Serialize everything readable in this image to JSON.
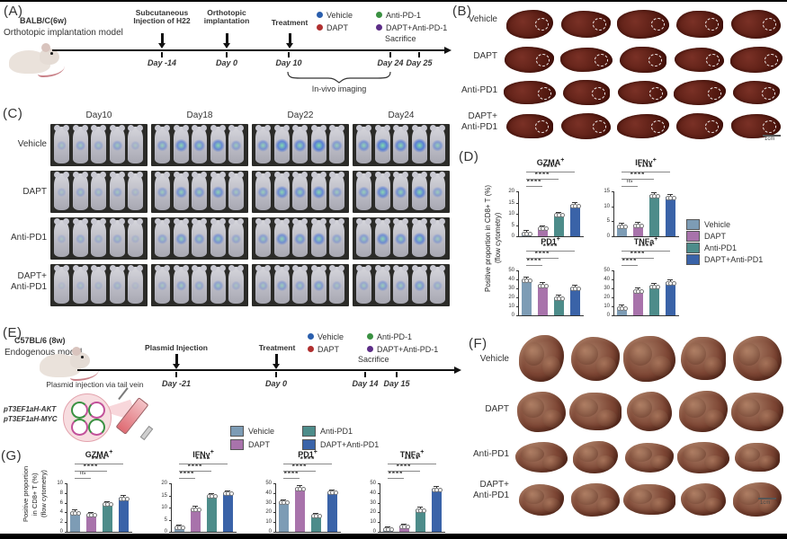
{
  "figure": {
    "panelA": {
      "label": "(A)",
      "strain": "BALB/C(6w)",
      "model": "Orthotopic implantation model",
      "events": [
        "Subcutaneous Injection of H22",
        "Orthotopic implantation",
        "Treatment"
      ],
      "days": [
        "Day -14",
        "Day 0",
        "Day 10",
        "Day 24",
        "Day 25"
      ],
      "sacrifice": "Sacrifice",
      "imaging_span": "In-vivo imaging",
      "legend": [
        {
          "label": "Vehicle",
          "color": "#2b5fad"
        },
        {
          "label": "DAPT",
          "color": "#b03030"
        },
        {
          "label": "Anti-PD-1",
          "color": "#3a9142"
        },
        {
          "label": "DAPT+Anti-PD-1",
          "color": "#5c2d87"
        }
      ]
    },
    "panelB": {
      "label": "(B)",
      "rows": [
        "Vehicle",
        "DAPT",
        "Anti-PD1",
        "DAPT+\nAnti-PD1"
      ],
      "scale_bar": "1cm"
    },
    "panelC": {
      "label": "(C)",
      "columns": [
        "Day10",
        "Day18",
        "Day22",
        "Day24"
      ],
      "rows": [
        "Vehicle",
        "DAPT",
        "Anti-PD1",
        "DAPT+\nAnti-PD1"
      ]
    },
    "panelD": {
      "label": "(D)",
      "ylabel_lines": [
        "Positive proportion in CD8+ T (%)",
        "(flow cytometry)"
      ]
    },
    "panelE": {
      "label": "(E)",
      "strain": "C57BL/6 (8w)",
      "model": "Endogenous model",
      "events": [
        "Plasmid Injection",
        "Treatment"
      ],
      "days": [
        "Day -21",
        "Day 0",
        "Day 14",
        "Day 15"
      ],
      "sacrifice": "Sacrifice",
      "tail_note": "Plasmid injection via tail vein",
      "plasmids": [
        "pT3EF1aH-AKT",
        "pT3EF1aH-MYC"
      ],
      "legend": [
        {
          "label": "Vehicle",
          "color": "#2b5fad"
        },
        {
          "label": "DAPT",
          "color": "#b03030"
        },
        {
          "label": "Anti-PD-1",
          "color": "#3a9142"
        },
        {
          "label": "DAPT+Anti-PD-1",
          "color": "#5c2d87"
        }
      ]
    },
    "panelF": {
      "label": "(F)",
      "rows": [
        "Vehicle",
        "DAPT",
        "Anti-PD1",
        "DAPT+\nAnti-PD1"
      ],
      "scale_bar": "1cm"
    },
    "panelG": {
      "label": "(G)",
      "ylabel_lines": [
        "Positive proportion",
        "in CD8+ T (%)",
        "(flow cytometry)"
      ]
    }
  },
  "bar_legend": {
    "items": [
      "Vehicle",
      "DAPT",
      "Anti-PD1",
      "DAPT+Anti-PD1"
    ],
    "colors": {
      "vehicle": "#7d9cb5",
      "dapt": "#a873ab",
      "antipd1": "#4d8c8a",
      "combo": "#3a63a8"
    }
  },
  "chart_data": [
    {
      "id": "d-gzma",
      "panel": "D",
      "type": "bar",
      "title": "GZMA",
      "title_sup": "+",
      "categories": [
        "Vehicle",
        "DAPT",
        "Anti-PD1",
        "DAPT+Anti-PD1"
      ],
      "values": [
        1.5,
        3.7,
        9.7,
        14
      ],
      "ylim": [
        0,
        20
      ],
      "yticks": [
        0,
        5,
        10,
        15,
        20
      ],
      "sig_vs_vehicle": [
        "****",
        "****",
        "****"
      ]
    },
    {
      "id": "d-ifny",
      "panel": "D",
      "type": "bar",
      "title": "IFNγ",
      "title_sup": "+",
      "categories": [
        "Vehicle",
        "DAPT",
        "Anti-PD1",
        "DAPT+Anti-PD1"
      ],
      "values": [
        3.5,
        3.9,
        13.8,
        13.2
      ],
      "ylim": [
        0,
        15
      ],
      "yticks": [
        0,
        5,
        10,
        15
      ],
      "sig_vs_vehicle": [
        "ns",
        "****",
        "****"
      ]
    },
    {
      "id": "d-pd1",
      "panel": "D",
      "type": "bar",
      "title": "PD1",
      "title_sup": "+",
      "categories": [
        "Vehicle",
        "DAPT",
        "Anti-PD1",
        "DAPT+Anti-PD1"
      ],
      "values": [
        40,
        34,
        20,
        31
      ],
      "ylim": [
        0,
        50
      ],
      "yticks": [
        0,
        10,
        20,
        30,
        40,
        50
      ],
      "sig_vs_vehicle": [
        "****",
        "****",
        "****"
      ]
    },
    {
      "id": "d-tnfa",
      "panel": "D",
      "type": "bar",
      "title": "TNFa",
      "title_sup": "+",
      "categories": [
        "Vehicle",
        "DAPT",
        "Anti-PD1",
        "DAPT+Anti-PD1"
      ],
      "values": [
        9,
        28,
        33,
        37
      ],
      "ylim": [
        0,
        50
      ],
      "yticks": [
        0,
        10,
        20,
        30,
        40,
        50
      ],
      "sig_vs_vehicle": [
        "****",
        "****",
        "****"
      ]
    },
    {
      "id": "g-gzma",
      "panel": "G",
      "type": "bar",
      "title": "GZMA",
      "title_sup": "+",
      "categories": [
        "Vehicle",
        "DAPT",
        "Anti-PD1",
        "DAPT+Anti-PD1"
      ],
      "values": [
        4,
        3.6,
        5.8,
        7
      ],
      "ylim": [
        0,
        10
      ],
      "yticks": [
        0,
        2,
        4,
        6,
        8,
        10
      ],
      "sig_vs_vehicle": [
        "ns",
        "****",
        "****"
      ]
    },
    {
      "id": "g-ifny",
      "panel": "G",
      "type": "bar",
      "title": "IFNγ",
      "title_sup": "+",
      "categories": [
        "Vehicle",
        "DAPT",
        "Anti-PD1",
        "DAPT+Anti-PD1"
      ],
      "values": [
        2,
        9.5,
        15,
        16
      ],
      "ylim": [
        0,
        20
      ],
      "yticks": [
        0,
        5,
        10,
        15,
        20
      ],
      "sig_vs_vehicle": [
        "****",
        "****",
        "****"
      ]
    },
    {
      "id": "g-pd1",
      "panel": "G",
      "type": "bar",
      "title": "PD1",
      "title_sup": "+",
      "categories": [
        "Vehicle",
        "DAPT",
        "Anti-PD1",
        "DAPT+Anti-PD1"
      ],
      "values": [
        31,
        45,
        17,
        41
      ],
      "ylim": [
        0,
        50
      ],
      "yticks": [
        0,
        10,
        20,
        30,
        40,
        50
      ],
      "sig_vs_vehicle": [
        "****",
        "****",
        "****"
      ]
    },
    {
      "id": "g-tnfa",
      "panel": "G",
      "type": "bar",
      "title": "TNFa",
      "title_sup": "+",
      "categories": [
        "Vehicle",
        "DAPT",
        "Anti-PD1",
        "DAPT+Anti-PD1"
      ],
      "values": [
        3,
        6,
        23,
        44
      ],
      "ylim": [
        0,
        50
      ],
      "yticks": [
        0,
        10,
        20,
        30,
        40,
        50
      ],
      "sig_vs_vehicle": [
        "****",
        "****",
        "****"
      ]
    }
  ]
}
